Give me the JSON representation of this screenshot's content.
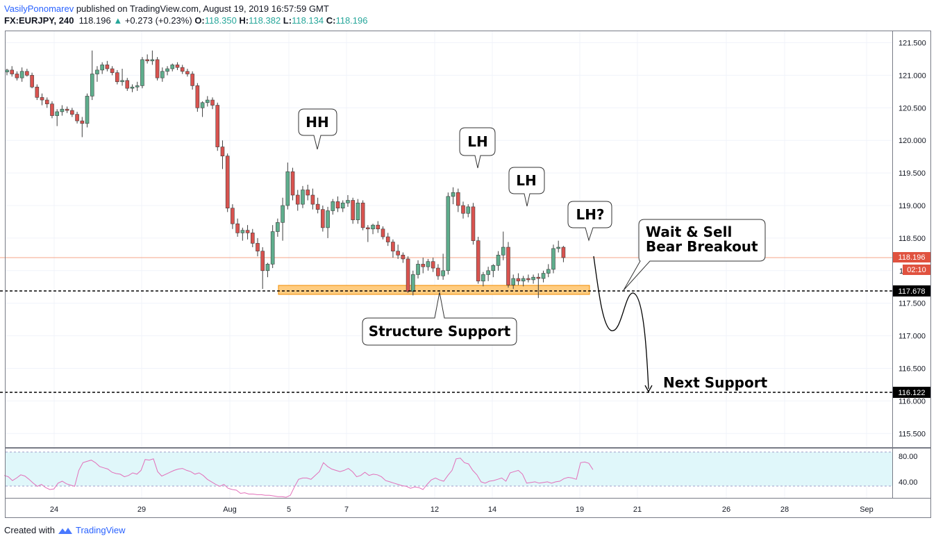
{
  "header": {
    "author": "VasilyPonomarev",
    "published_text": "published on TradingView.com, August 19, 2019 16:57:59 GMT",
    "symbol": "FX:EURJPY, 240",
    "last": "118.196",
    "change_arrow": "▲",
    "change": "+0.273 (+0.23%)",
    "o_label": "O:",
    "o_value": "118.350",
    "h_label": "H:",
    "h_value": "118.382",
    "l_label": "L:",
    "l_value": "118.134",
    "c_label": "C:",
    "c_value": "118.196"
  },
  "footer": {
    "created_with": "Created with",
    "brand": "TradingView"
  },
  "colors": {
    "up": "#26a69a",
    "up_fill": "#5fae8d",
    "down": "#ef5350",
    "down_fill": "#d9534f",
    "rsi": "#e26fb9",
    "rsi_band": "#e0f7fa",
    "zone": "#ffcc80"
  },
  "chart_data": [
    {
      "type": "candlestick",
      "symbol": "FX:EURJPY",
      "timeframe": "240",
      "x_tick_labels": [
        "24",
        "29",
        "Aug",
        "5",
        "7",
        "12",
        "14",
        "19",
        "21",
        "26",
        "28",
        "Sep"
      ],
      "y_tick_labels": [
        "121.500",
        "121.000",
        "120.500",
        "120.000",
        "119.500",
        "119.000",
        "118.500",
        "118.000",
        "117.500",
        "117.000",
        "116.500",
        "116.000",
        "115.500"
      ],
      "ylim": [
        115.0,
        121.5
      ],
      "price_tags": [
        {
          "value": 118.196,
          "label": "118.196",
          "kind": "last"
        },
        {
          "label": "02:10",
          "kind": "countdown"
        },
        {
          "value": 117.678,
          "label": "117.678",
          "kind": "line"
        },
        {
          "value": 116.122,
          "label": "116.122",
          "kind": "line"
        }
      ],
      "horizontal_lines": [
        117.678,
        116.122
      ],
      "support_zone": [
        117.6,
        117.74
      ],
      "annotations": [
        {
          "text": "HH"
        },
        {
          "text": "LH"
        },
        {
          "text": "LH"
        },
        {
          "text": "LH?"
        },
        {
          "text": "Wait & Sell"
        },
        {
          "text": "Bear Breakout"
        },
        {
          "text": "Structure Support"
        },
        {
          "text": "Next Support"
        }
      ],
      "candles": [
        [
          121.05,
          121.1,
          121.0,
          121.08
        ],
        [
          121.08,
          121.14,
          120.98,
          121.02
        ],
        [
          121.02,
          121.06,
          120.92,
          120.96
        ],
        [
          120.96,
          121.12,
          120.9,
          121.06
        ],
        [
          121.06,
          121.1,
          120.98,
          121.0
        ],
        [
          121.0,
          121.04,
          120.8,
          120.82
        ],
        [
          120.82,
          120.86,
          120.62,
          120.66
        ],
        [
          120.66,
          120.72,
          120.54,
          120.62
        ],
        [
          120.62,
          120.66,
          120.5,
          120.56
        ],
        [
          120.56,
          120.6,
          120.34,
          120.38
        ],
        [
          120.38,
          120.48,
          120.22,
          120.44
        ],
        [
          120.44,
          120.54,
          120.38,
          120.48
        ],
        [
          120.48,
          120.52,
          120.42,
          120.46
        ],
        [
          120.46,
          120.5,
          120.36,
          120.4
        ],
        [
          120.4,
          120.44,
          120.26,
          120.3
        ],
        [
          120.3,
          120.36,
          120.05,
          120.26
        ],
        [
          120.26,
          120.72,
          120.2,
          120.68
        ],
        [
          120.68,
          121.38,
          120.62,
          121.02
        ],
        [
          121.02,
          121.14,
          120.9,
          121.08
        ],
        [
          121.08,
          121.2,
          121.02,
          121.16
        ],
        [
          121.16,
          121.22,
          121.06,
          121.1
        ],
        [
          121.1,
          121.14,
          121.0,
          121.04
        ],
        [
          121.04,
          121.08,
          120.86,
          120.9
        ],
        [
          120.9,
          121.1,
          120.84,
          120.92
        ],
        [
          120.92,
          120.96,
          120.76,
          120.8
        ],
        [
          120.8,
          120.86,
          120.74,
          120.82
        ],
        [
          120.82,
          120.9,
          120.76,
          120.84
        ],
        [
          120.84,
          121.28,
          120.8,
          121.24
        ],
        [
          121.24,
          121.32,
          121.18,
          121.22
        ],
        [
          121.22,
          121.38,
          121.16,
          121.24
        ],
        [
          121.24,
          121.28,
          120.92,
          120.96
        ],
        [
          120.96,
          121.12,
          120.9,
          121.06
        ],
        [
          121.06,
          121.14,
          121.0,
          121.1
        ],
        [
          121.1,
          121.18,
          121.06,
          121.16
        ],
        [
          121.16,
          121.2,
          121.08,
          121.12
        ],
        [
          121.12,
          121.16,
          121.02,
          121.06
        ],
        [
          121.06,
          121.1,
          120.98,
          121.02
        ],
        [
          121.02,
          121.06,
          120.78,
          120.84
        ],
        [
          120.84,
          120.88,
          120.44,
          120.5
        ],
        [
          120.5,
          120.6,
          120.36,
          120.58
        ],
        [
          120.58,
          120.68,
          120.52,
          120.62
        ],
        [
          120.62,
          120.66,
          120.48,
          120.54
        ],
        [
          120.54,
          120.58,
          119.84,
          119.9
        ],
        [
          119.9,
          120.0,
          119.56,
          119.76
        ],
        [
          119.76,
          119.8,
          118.9,
          118.96
        ],
        [
          118.96,
          119.02,
          118.64,
          118.72
        ],
        [
          118.72,
          118.8,
          118.52,
          118.58
        ],
        [
          118.58,
          118.66,
          118.46,
          118.62
        ],
        [
          118.62,
          118.7,
          118.48,
          118.58
        ],
        [
          118.58,
          118.64,
          118.36,
          118.42
        ],
        [
          118.42,
          118.5,
          118.22,
          118.3
        ],
        [
          118.3,
          118.36,
          117.72,
          118.0
        ],
        [
          118.0,
          118.12,
          117.9,
          118.1
        ],
        [
          118.1,
          118.7,
          118.04,
          118.6
        ],
        [
          118.6,
          118.8,
          118.52,
          118.74
        ],
        [
          118.74,
          119.12,
          118.46,
          119.0
        ],
        [
          119.0,
          119.66,
          118.94,
          119.52
        ],
        [
          119.52,
          119.58,
          119.08,
          119.16
        ],
        [
          119.16,
          119.24,
          118.92,
          119.02
        ],
        [
          119.02,
          119.3,
          118.96,
          119.24
        ],
        [
          119.24,
          119.32,
          119.08,
          119.16
        ],
        [
          119.16,
          119.26,
          118.94,
          119.02
        ],
        [
          119.02,
          119.12,
          118.88,
          118.94
        ],
        [
          118.94,
          119.0,
          118.6,
          118.66
        ],
        [
          118.66,
          118.98,
          118.5,
          118.92
        ],
        [
          118.92,
          119.1,
          118.86,
          119.06
        ],
        [
          119.06,
          119.14,
          118.9,
          118.96
        ],
        [
          118.96,
          119.08,
          118.9,
          119.04
        ],
        [
          119.04,
          119.16,
          118.98,
          119.08
        ],
        [
          119.08,
          119.12,
          118.72,
          118.78
        ],
        [
          118.78,
          119.1,
          118.72,
          119.04
        ],
        [
          119.04,
          119.08,
          118.62,
          118.66
        ],
        [
          118.66,
          118.7,
          118.44,
          118.64
        ],
        [
          118.64,
          118.72,
          118.56,
          118.7
        ],
        [
          118.7,
          118.76,
          118.58,
          118.64
        ],
        [
          118.64,
          118.68,
          118.48,
          118.52
        ],
        [
          118.52,
          118.58,
          118.38,
          118.44
        ],
        [
          118.44,
          118.48,
          118.2,
          118.3
        ],
        [
          118.3,
          118.4,
          118.18,
          118.24
        ],
        [
          118.24,
          118.28,
          118.12,
          118.18
        ],
        [
          118.18,
          118.22,
          117.66,
          117.68
        ],
        [
          117.68,
          118.0,
          117.62,
          117.94
        ],
        [
          117.94,
          118.16,
          117.88,
          118.1
        ],
        [
          118.1,
          118.2,
          117.96,
          118.06
        ],
        [
          118.06,
          118.18,
          118.0,
          118.14
        ],
        [
          118.14,
          118.2,
          117.98,
          118.04
        ],
        [
          118.04,
          118.1,
          117.86,
          117.92
        ],
        [
          117.92,
          118.26,
          117.86,
          118.0
        ],
        [
          118.0,
          119.2,
          117.94,
          119.14
        ],
        [
          119.14,
          119.28,
          119.02,
          119.2
        ],
        [
          119.2,
          119.26,
          118.9,
          119.0
        ],
        [
          119.0,
          119.06,
          118.8,
          118.88
        ],
        [
          118.88,
          119.02,
          118.82,
          118.98
        ],
        [
          118.98,
          119.04,
          118.4,
          118.46
        ],
        [
          118.46,
          118.52,
          117.8,
          117.84
        ],
        [
          117.84,
          117.98,
          117.76,
          117.94
        ],
        [
          117.94,
          118.06,
          117.84,
          118.0
        ],
        [
          118.0,
          118.1,
          117.9,
          118.08
        ],
        [
          118.08,
          118.3,
          118.0,
          118.24
        ],
        [
          118.24,
          118.6,
          118.16,
          118.36
        ],
        [
          118.36,
          118.44,
          117.74,
          117.78
        ],
        [
          117.78,
          117.94,
          117.72,
          117.88
        ],
        [
          117.88,
          117.96,
          117.78,
          117.84
        ],
        [
          117.84,
          117.92,
          117.76,
          117.88
        ],
        [
          117.88,
          117.94,
          117.82,
          117.86
        ],
        [
          117.86,
          117.94,
          117.8,
          117.9
        ],
        [
          117.9,
          117.96,
          117.58,
          117.88
        ],
        [
          117.88,
          118.0,
          117.82,
          117.96
        ],
        [
          117.96,
          118.1,
          117.9,
          118.02
        ],
        [
          118.02,
          118.4,
          117.96,
          118.34
        ],
        [
          118.34,
          118.46,
          118.28,
          118.36
        ],
        [
          118.36,
          118.38,
          118.13,
          118.2
        ]
      ]
    },
    {
      "type": "line",
      "name": "RSI",
      "y_tick_labels": [
        "80.00",
        "40.00"
      ],
      "ylim": [
        15,
        92
      ],
      "bands": [
        80,
        30
      ],
      "values": [
        50,
        48,
        42,
        46,
        51,
        49,
        44,
        38,
        33,
        36,
        31,
        28,
        29,
        38,
        41,
        37,
        35,
        33,
        58,
        70,
        72,
        74,
        70,
        64,
        62,
        60,
        55,
        53,
        52,
        48,
        50,
        54,
        52,
        58,
        75,
        74,
        76,
        56,
        49,
        52,
        55,
        58,
        60,
        61,
        58,
        56,
        52,
        54,
        50,
        44,
        40,
        36,
        33,
        36,
        30,
        28,
        27,
        22,
        23,
        21,
        21,
        20,
        20,
        19,
        19,
        18,
        17,
        17,
        16,
        19,
        32,
        44,
        46,
        46,
        44,
        50,
        56,
        70,
        64,
        60,
        58,
        56,
        58,
        61,
        56,
        48,
        50,
        55,
        50,
        52,
        51,
        48,
        42,
        40,
        38,
        36,
        34,
        33,
        30,
        32,
        31,
        28,
        36,
        43,
        46,
        43,
        41,
        50,
        58,
        76,
        77,
        70,
        68,
        58,
        51,
        40,
        38,
        41,
        42,
        44,
        46,
        41,
        54,
        56,
        58,
        52,
        38,
        39,
        40,
        38,
        39,
        40,
        38,
        40,
        41,
        45,
        47,
        46,
        44,
        70,
        71,
        69,
        59
      ]
    }
  ]
}
